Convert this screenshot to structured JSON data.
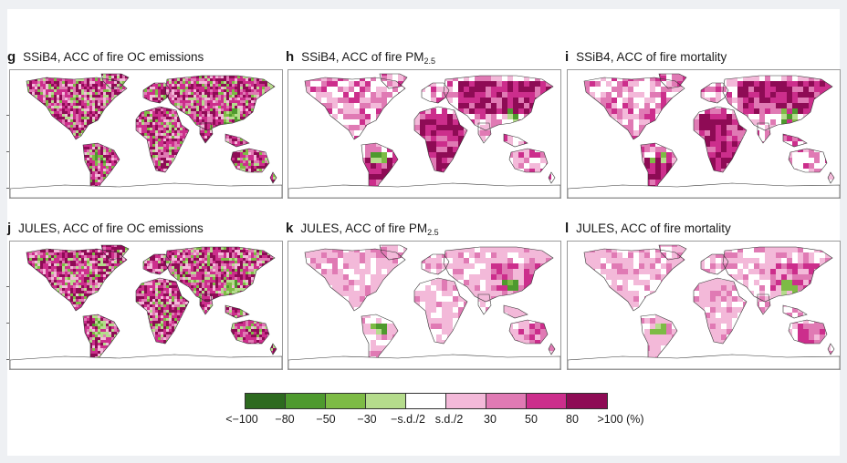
{
  "panels": [
    {
      "letter": "g",
      "title_pre": "SSiB4, ACC of fire OC emissions",
      "title_sub": "",
      "title_post": "",
      "style": "emis"
    },
    {
      "letter": "h",
      "title_pre": "SSiB4, ACC of fire PM",
      "title_sub": "2.5",
      "title_post": "",
      "style": "coarse"
    },
    {
      "letter": "i",
      "title_pre": "SSiB4, ACC of fire mortality",
      "title_sub": "",
      "title_post": "",
      "style": "coarse"
    },
    {
      "letter": "j",
      "title_pre": "JULES, ACC of fire OC emissions",
      "title_sub": "",
      "title_post": "",
      "style": "emis"
    },
    {
      "letter": "k",
      "title_pre": "JULES, ACC of fire PM",
      "title_sub": "2.5",
      "title_post": "",
      "style": "light"
    },
    {
      "letter": "l",
      "title_pre": "JULES, ACC of fire mortality",
      "title_sub": "",
      "title_post": "",
      "style": "light"
    }
  ],
  "legend": {
    "colors": [
      "#2d6a1f",
      "#4e9a2e",
      "#7dbb45",
      "#b5dc8c",
      "#ffffff",
      "#f3b9d9",
      "#e07ab4",
      "#cc2e8c",
      "#8e0b55"
    ],
    "labels": [
      "<−100",
      "−80",
      "−50",
      "−30",
      "−s.d./2",
      "s.d./2",
      "30",
      "50",
      "80",
      ">100 (%)"
    ]
  }
}
